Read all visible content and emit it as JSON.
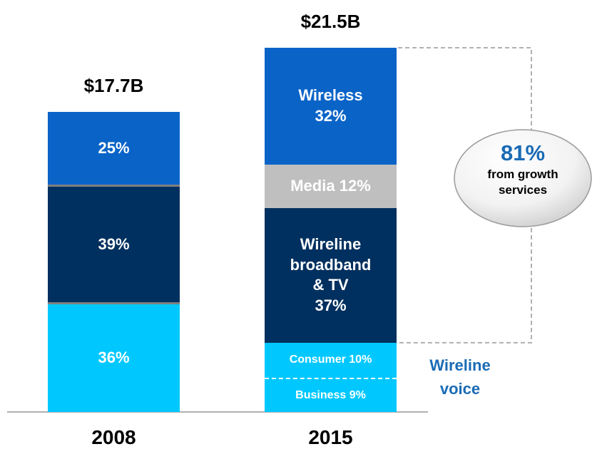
{
  "chart_data": {
    "type": "stacked_bar",
    "categories": [
      "2008",
      "2015"
    ],
    "totals": [
      17.7,
      21.5
    ],
    "total_labels": [
      "$17.7B",
      "$21.5B"
    ],
    "bars": [
      {
        "segments": [
          {
            "value": 36,
            "value_label": "36%",
            "color": "#00c8ff"
          },
          {
            "value": 39,
            "value_label": "39%",
            "color": "#00305f"
          },
          {
            "value": 25,
            "value_label": "25%",
            "color": "#0a64c8"
          }
        ]
      },
      {
        "segments": [
          {
            "name": "Business",
            "value": 9,
            "value_label": "9%",
            "color": "#00c8ff"
          },
          {
            "name": "Consumer",
            "value": 10,
            "value_label": "10%",
            "color": "#00c8ff"
          },
          {
            "name": "Wireline broadband & TV",
            "value": 37,
            "value_label": "37%",
            "color": "#00305f"
          },
          {
            "name": "Media",
            "value": 12,
            "value_label": "12%",
            "color": "#bfbfbf"
          },
          {
            "name": "Wireless",
            "value": 32,
            "value_label": "32%",
            "color": "#0a64c8"
          }
        ]
      }
    ],
    "annotation": "Wireline voice",
    "callout": {
      "value": 81,
      "value_label": "81%",
      "text": "from growth services"
    }
  }
}
